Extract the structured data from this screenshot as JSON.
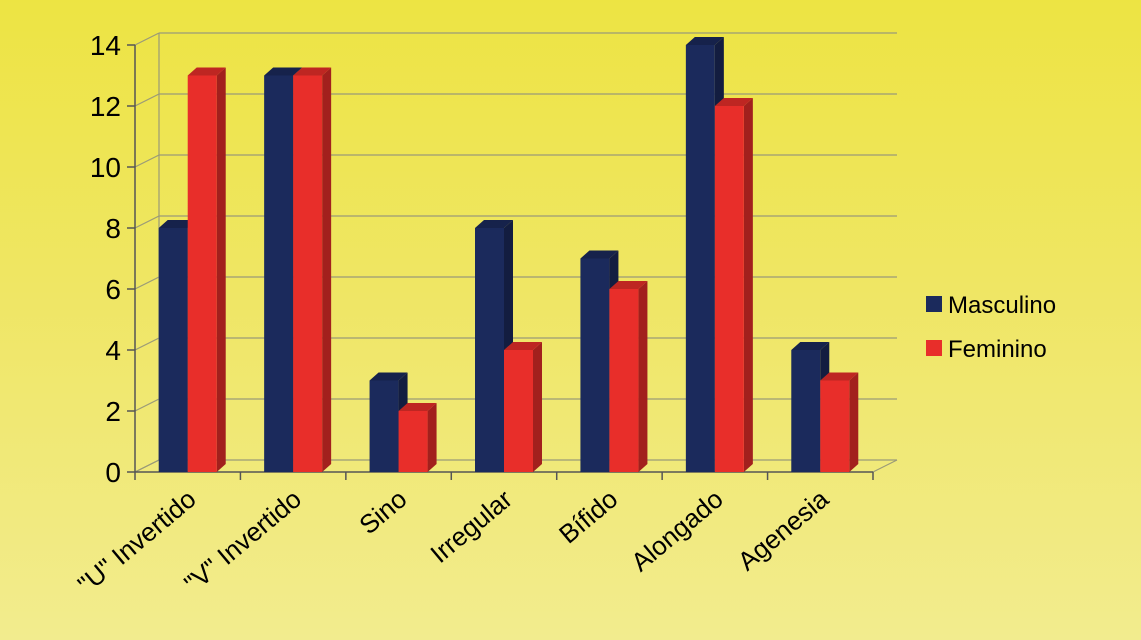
{
  "chart_data": {
    "type": "bar",
    "categories": [
      "\"U\" Invertido",
      "\"V\" Invertido",
      "Sino",
      "Irregular",
      "Bífido",
      "Alongado",
      "Agenesia"
    ],
    "series": [
      {
        "name": "Masculino",
        "values": [
          8,
          13,
          3,
          8,
          7,
          14,
          4
        ],
        "color": "#1b2a5c"
      },
      {
        "name": "Feminino",
        "values": [
          13,
          13,
          2,
          4,
          6,
          12,
          3
        ],
        "color": "#e82e2a"
      }
    ],
    "yticks": [
      "0",
      "2",
      "4",
      "6",
      "8",
      "10",
      "12",
      "14"
    ],
    "ylim": [
      0,
      14
    ],
    "grid": true,
    "legend_position": "right",
    "title": "",
    "xlabel": "",
    "ylabel": ""
  }
}
